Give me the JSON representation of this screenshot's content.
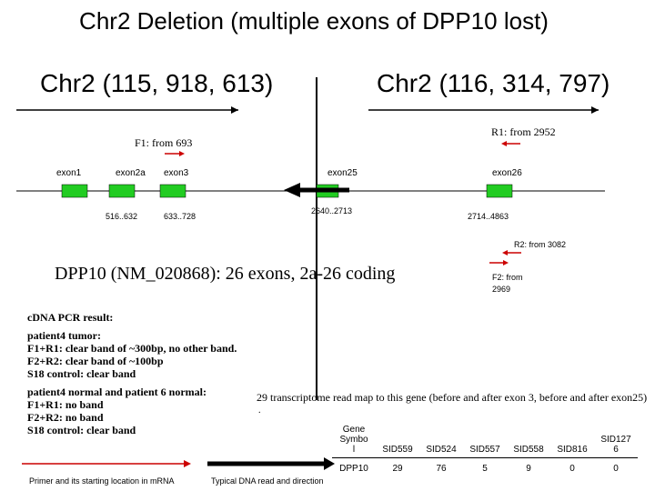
{
  "title": "Chr2 Deletion (multiple exons of DPP10 lost)",
  "breakpoints": {
    "left": "Chr2 (115, 918, 613)",
    "right": "Chr2 (116, 314, 797)"
  },
  "primers": {
    "f1": "F1: from 693",
    "r1": "R1: from 2952",
    "r2": "R2: from 3082",
    "f2_line1": "F2: from",
    "f2_line2": "2969"
  },
  "exons": {
    "exon1": "exon1",
    "exon2a": "exon2a",
    "exon3": "exon3",
    "exon25": "exon25",
    "exon26": "exon26"
  },
  "ranges": {
    "r2a": "516..632",
    "r3": "633..728",
    "r25": "2640..2713",
    "r26": "2714..4863"
  },
  "gene_title": "DPP10 (NM_020868): 26 exons, 2a-26 coding",
  "pcr": {
    "heading": "cDNA PCR result:",
    "tumor": "patient4 tumor:\nF1+R1: clear band of ~300bp, no other band.\nF2+R2: clear band of ~100bp\nS18 control: clear band",
    "normal": "patient4 normal and patient 6 normal:\nF1+R1: no band\nF2+R2: no band\nS18 control: clear band"
  },
  "transcript_note": "29 transcriptome read map to this gene (before and after exon 3, before and after exon25)",
  "transcript_dot": ".",
  "table": {
    "headers": [
      "Gene\nSymbo\nl",
      "SID559",
      "SID524",
      "SID557",
      "SID558",
      "SID816",
      "SID127\n6"
    ],
    "values": [
      "DPP10",
      "29",
      "76",
      "5",
      "9",
      "0",
      "0"
    ]
  },
  "legend": {
    "primer": "Primer and its starting location in mRNA",
    "dna": "Typical DNA read and direction"
  },
  "colors": {
    "exon": "#22cc22",
    "primer": "#cc0000",
    "line": "#000000"
  }
}
